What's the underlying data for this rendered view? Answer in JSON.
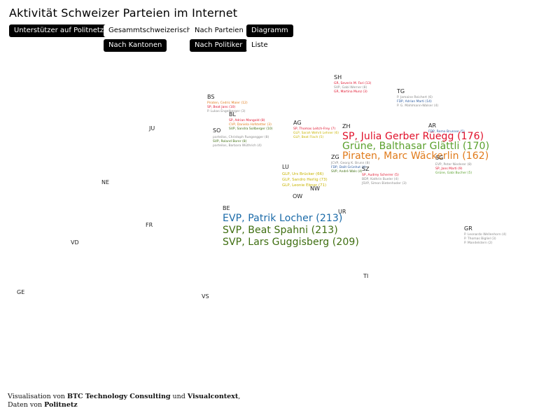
{
  "title": "Aktivität Schweizer Parteien im Internet",
  "colors": {
    "SP": "#e0102a",
    "Gruene": "#5aa02c",
    "Piraten": "#e07a1a",
    "EVP": "#1a6aa8",
    "SVP": "#3e6e10",
    "CVP": "#c8b400",
    "FDP": "#2a5aa0",
    "gray": "#888888"
  },
  "nav": {
    "unterstuetzer": "Unterstützer auf Politnetz",
    "gesamt": "Gesammtschweizerisch",
    "parteien": "Nach Parteien",
    "diagramm": "Diagramm",
    "kantone": "Nach Kantonen",
    "politiker": "Nach Politiker",
    "liste": "Liste"
  },
  "cantons": {
    "SH": "SH",
    "TG": "TG",
    "BS": "BS",
    "BL": "BL",
    "JU": "JU",
    "SO": "SO",
    "AG": "AG",
    "ZH": "ZH",
    "AR": "AR",
    "SG": "SG",
    "ZG": "ZG",
    "SZ": "SZ",
    "LU": "LU",
    "NW": "NW",
    "OW": "OW",
    "NE": "NE",
    "BE": "BE",
    "UR": "UR",
    "FR": "FR",
    "GR": "GR",
    "VD": "VD",
    "TI": "TI",
    "GE": "GE",
    "VS": "VS"
  },
  "entries": {
    "sh1": "GR, Severin M. Fari (13)",
    "sh2": "SVP, Gabi Werner (8)",
    "sh3": "GR, Martina Munz (3)",
    "tg1": "P. Jamaine Reichert (6)",
    "tg2": "FDP, Adrian Marti (14)",
    "tg3": "P. G. Mahlmann-Walser (4)",
    "bs1": "Piraten, Cedric Maier (12)",
    "bs2": "SP, Beat Jans (10)",
    "bs3": "P. Lukas Engelberger (3)",
    "bl1": "SP, Adrian Mangold (8)",
    "bl2": "CVP, Daniela Hofstetter (3)",
    "bl3": "SVP, Sandra Sollberger (10)",
    "so1": "parteilos, Christoph Ruegsegger (8)",
    "so2": "SVP, Roland Borer (8)",
    "so3": "parteilos, Barbara Wüthrich (4)",
    "ag1": "SP, Thomas Leitch-Frey (7)",
    "ag2": "GLP, Sarah Wehrli Lehner (6)",
    "ag3": "GLP, Beat Flach (5)",
    "zh1": "SP, Julia Gerber Rüegg (176)",
    "zh2": "Grüne, Balthasar Glättli (170)",
    "zh3": "Piraten, Marc Wäckerlin (162)",
    "ar1": "FDP, Remo Brunner (5)",
    "sg1": "EVP, Peter Niederer (8)",
    "sg2": "SP, Jans Marti (9)",
    "sg3": "Grüne, Gabi Bucher (5)",
    "zg1": "JCVP, Georg K. Brunn (8)",
    "zg2": "FDP, Dalit Grünhut (4)",
    "zg3": "SVP, André Wals (4)",
    "sz1": "SP, Audrey Scherrer (5)",
    "sz2": "BDP, Kathrin Bueler (4)",
    "sz3": "JSVP, Simon Bietenhader (3)",
    "lu1": "GLP, Urs Brücker (66)",
    "lu2": "GLP, Sandro Herlig (73)",
    "lu3": "GLP, Leonie Ebner (71)",
    "be1": "EVP, Patrik Locher (213)",
    "be2": "SVP, Beat Spahni (213)",
    "be3": "SVP, Lars Guggisberg (209)",
    "gr1": "P. Leonardo Wellenhorn (4)",
    "gr2": "P. Thomas Bigliel (3)",
    "gr3": "P. Mandelstern (2)"
  },
  "footer": {
    "line1_prefix": "Visualisation von ",
    "org1": "BTC Technology Consulting",
    "line1_mid": " und ",
    "org2": "Visualcontext",
    "line1_suffix": ",",
    "line2_prefix": "Daten von ",
    "org3": "Politnetz"
  }
}
